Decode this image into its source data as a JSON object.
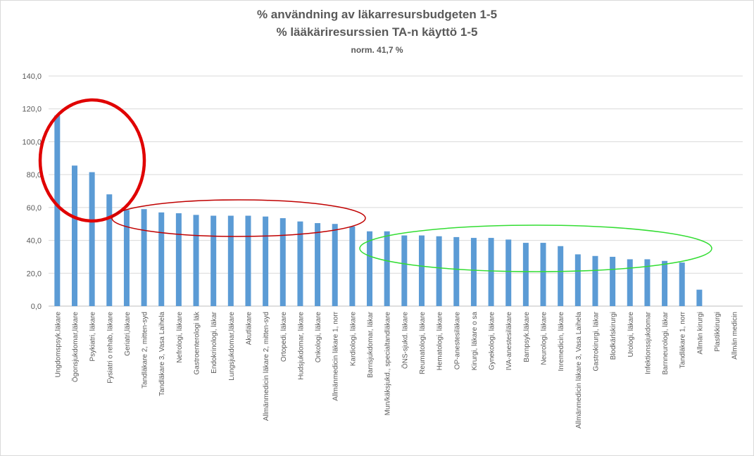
{
  "chart_data": {
    "type": "bar",
    "title": "% användning av läkarresursbudgeten 1-5",
    "subtitle": "% lääkäriresurssien TA-n käyttö 1-5",
    "note": "norm. 41,7 %",
    "categories": [
      "Ungdomspsyk.läkare",
      "Ögonsjukdomar,läkare",
      "Psykiatri, läkare",
      "Fysiatri o rehab, läkare",
      "Geriatri,läkare",
      "Tandläkare 2, mitten-syd",
      "Tandläkare 3, Vasa Laihela",
      "Nefrologi, läkare",
      "Gastroenterologi läk",
      "Endokrinologi, läkar",
      "Lungsjukdomar,läkare",
      "Akutläkare",
      "Allmänmedicin läkare 2, mitten-syd",
      "Ortopedi, läkare",
      "Hudsjukdomar, läkare",
      "Onkologi, läkare",
      "Allmänmedicin läkare 1, norr",
      "Kardiologi, läkare",
      "Barnsjukdomar, läkar",
      "Mun/käksjukd., specialtandläkare",
      "ÖNS-sjukd. läkare",
      "Reumatologi, läkare",
      "Hematologi, läkare",
      "OP-anestesiläkare",
      "Kirurgi, läkare o sa",
      "Gynekologi, läkare",
      "IVA-anestesiläkare",
      "Barnpsyk.läkare",
      "Neurologi, läkare",
      "Inremedicin, läkare",
      "Allmänmedicin läkare 3, Vasa Laihela",
      "Gastrokirurgi, läkar",
      "Blodkärlskirurgi",
      "Urologi, läkare",
      "Infektionssjukdomar",
      "Barnneurologi, läkar",
      "Tandläkare 1, norr",
      "Allmän kirurgi",
      "Plastikkirurgi",
      "Allmän medicin"
    ],
    "values": [
      116,
      85.5,
      81.5,
      68,
      58.5,
      59,
      57,
      56.5,
      55.5,
      55,
      55,
      55,
      54.5,
      53.5,
      51.5,
      50.5,
      50,
      48.5,
      45.5,
      45.5,
      43,
      43,
      42.5,
      42,
      41.5,
      41.5,
      40.5,
      38.5,
      38.5,
      36.5,
      31.5,
      30.5,
      30,
      28.5,
      28.5,
      27.5,
      26.5,
      10,
      0,
      0
    ],
    "ylim": [
      0,
      140
    ],
    "yticks": [
      "0,0",
      "20,0",
      "40,0",
      "60,0",
      "80,0",
      "100,0",
      "120,0",
      "140,0"
    ],
    "ytick_values": [
      0,
      20,
      40,
      60,
      80,
      100,
      120,
      140
    ],
    "grid": true,
    "colors": {
      "bar": "#5b9bd5",
      "grid": "#d9d9d9",
      "axis": "#bfbfbf",
      "text": "#595959"
    },
    "annotations": [
      {
        "shape": "ellipse",
        "color": "#e00000",
        "covers": [
          "Ungdomspsyk.läkare",
          "Fysiatri o rehab, läkare"
        ]
      },
      {
        "shape": "ellipse",
        "color": "#c00000",
        "covers": [
          "Geriatri,läkare",
          "Barnsjukdomar, läkar"
        ]
      },
      {
        "shape": "ellipse",
        "color": "#33dd33",
        "covers": [
          "Mun/käksjukd., specialtandläkare",
          "Tandläkare 1, norr"
        ]
      }
    ]
  }
}
